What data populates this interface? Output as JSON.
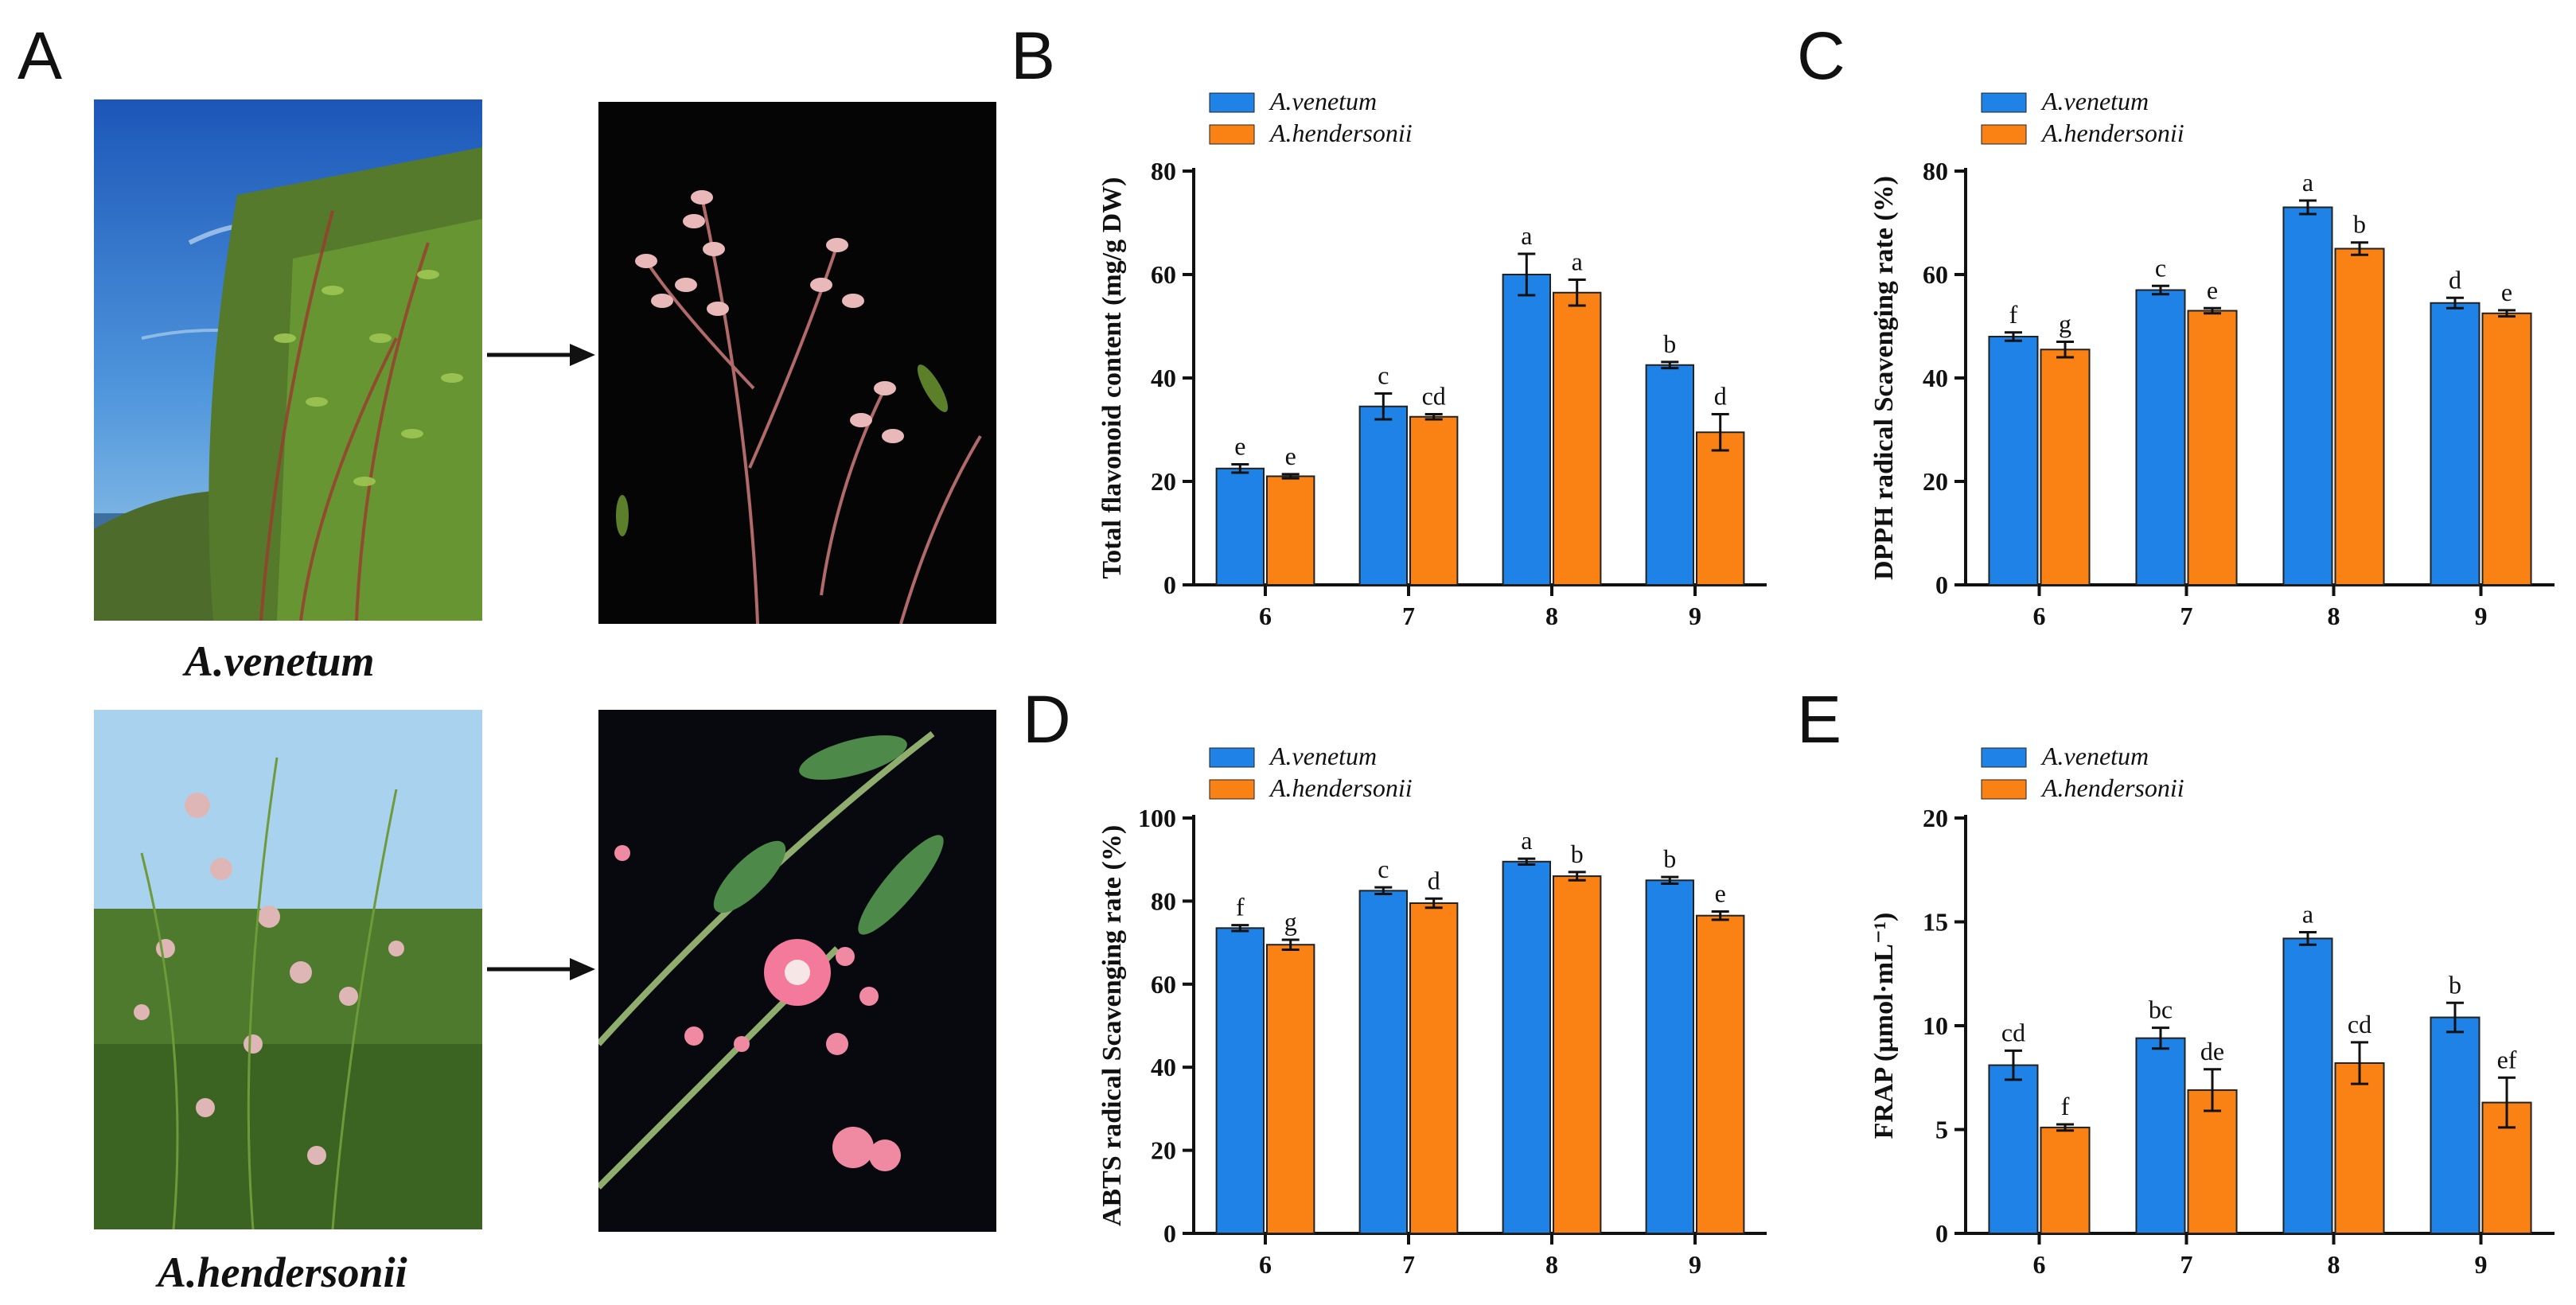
{
  "figure": {
    "panel_labels": [
      "A",
      "B",
      "C",
      "D",
      "E"
    ],
    "photos": {
      "venetum_caption": "A.venetum",
      "hendersonii_caption": "A.hendersonii"
    }
  },
  "colors": {
    "venetum": "#1E82E6",
    "hendersonii": "#FA8214",
    "axis": "#111111"
  },
  "chart_data": [
    {
      "id": "B",
      "type": "bar",
      "categories": [
        "6",
        "7",
        "8",
        "9"
      ],
      "ylabel": "Total flavonoid content (mg/g DW)",
      "ylim": [
        0,
        80
      ],
      "yticks": [
        0,
        20,
        40,
        60,
        80
      ],
      "legend_position": "top-left",
      "series": [
        {
          "name": "A.venetum",
          "values": [
            22.5,
            34.5,
            60,
            42.5
          ],
          "errors": [
            0.8,
            2.5,
            4,
            0.6
          ],
          "labels": [
            "e",
            "c",
            "a",
            "b"
          ]
        },
        {
          "name": "A.hendersonii",
          "values": [
            21,
            32.5,
            56.5,
            29.5
          ],
          "errors": [
            0.4,
            0.5,
            2.5,
            3.5
          ],
          "labels": [
            "e",
            "cd",
            "a",
            "d"
          ]
        }
      ]
    },
    {
      "id": "C",
      "type": "bar",
      "categories": [
        "6",
        "7",
        "8",
        "9"
      ],
      "ylabel": "DPPH radical Scavenging rate (%)",
      "ylim": [
        0,
        80
      ],
      "yticks": [
        0,
        20,
        40,
        60,
        80
      ],
      "legend_position": "top-left",
      "series": [
        {
          "name": "A.venetum",
          "values": [
            48,
            57,
            73,
            54.5
          ],
          "errors": [
            0.8,
            0.8,
            1.3,
            1
          ],
          "labels": [
            "f",
            "c",
            "a",
            "d"
          ]
        },
        {
          "name": "A.hendersonii",
          "values": [
            45.5,
            53,
            65,
            52.5
          ],
          "errors": [
            1.5,
            0.5,
            1.2,
            0.6
          ],
          "labels": [
            "g",
            "e",
            "b",
            "e"
          ]
        }
      ]
    },
    {
      "id": "D",
      "type": "bar",
      "categories": [
        "6",
        "7",
        "8",
        "9"
      ],
      "ylabel": "ABTS radical Scavenging rate (%)",
      "ylim": [
        0,
        100
      ],
      "yticks": [
        0,
        20,
        40,
        60,
        80,
        100
      ],
      "legend_position": "top-left",
      "series": [
        {
          "name": "A.venetum",
          "values": [
            73.5,
            82.5,
            89.5,
            85
          ],
          "errors": [
            0.7,
            0.8,
            0.7,
            0.8
          ],
          "labels": [
            "f",
            "c",
            "a",
            "b"
          ]
        },
        {
          "name": "A.hendersonii",
          "values": [
            69.5,
            79.5,
            86,
            76.5
          ],
          "errors": [
            1.2,
            1.1,
            1,
            1
          ],
          "labels": [
            "g",
            "d",
            "b",
            "e"
          ]
        }
      ]
    },
    {
      "id": "E",
      "type": "bar",
      "categories": [
        "6",
        "7",
        "8",
        "9"
      ],
      "ylabel": "FRAP (µmol·mL⁻¹)",
      "ylim": [
        0,
        20
      ],
      "yticks": [
        0,
        5,
        10,
        15,
        20
      ],
      "legend_position": "top-left",
      "series": [
        {
          "name": "A.venetum",
          "values": [
            8.1,
            9.4,
            14.2,
            10.4
          ],
          "errors": [
            0.7,
            0.5,
            0.3,
            0.7
          ],
          "labels": [
            "cd",
            "bc",
            "a",
            "b"
          ]
        },
        {
          "name": "A.hendersonii",
          "values": [
            5.1,
            6.9,
            8.2,
            6.3
          ],
          "errors": [
            0.15,
            1,
            1,
            1.2
          ],
          "labels": [
            "f",
            "de",
            "cd",
            "ef"
          ]
        }
      ]
    }
  ]
}
